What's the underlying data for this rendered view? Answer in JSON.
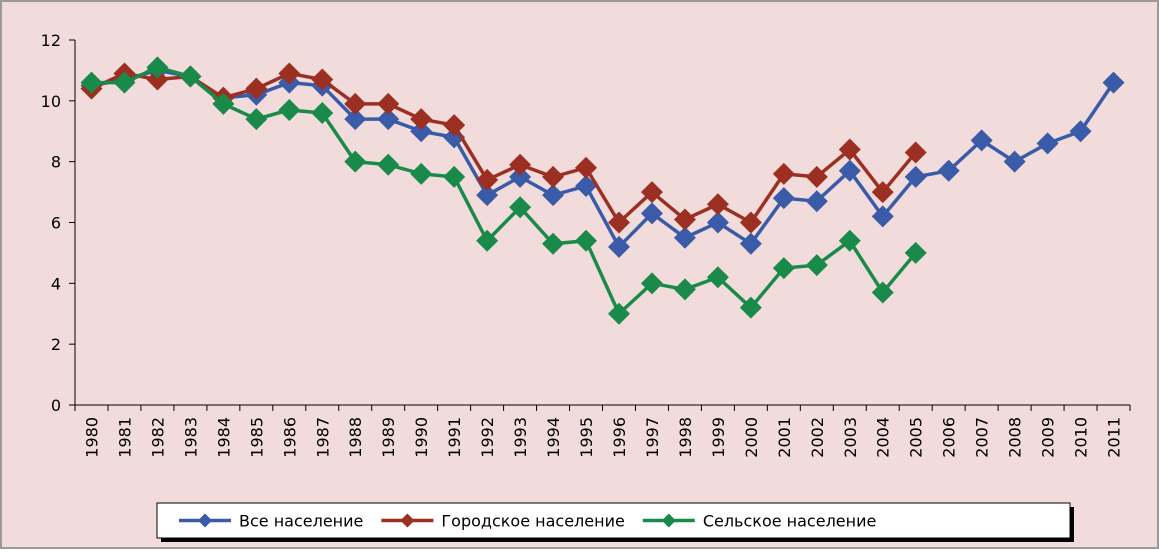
{
  "chart_data": {
    "type": "line",
    "categories": [
      "1980",
      "1981",
      "1982",
      "1983",
      "1984",
      "1985",
      "1986",
      "1987",
      "1988",
      "1989",
      "1990",
      "1991",
      "1992",
      "1993",
      "1994",
      "1995",
      "1996",
      "1997",
      "1998",
      "1999",
      "2000",
      "2001",
      "2002",
      "2003",
      "2004",
      "2005",
      "2006",
      "2007",
      "2008",
      "2009",
      "2010",
      "2011"
    ],
    "series": [
      {
        "name": "Все население",
        "color": "#3a5ba8",
        "values": [
          10.5,
          10.7,
          11.0,
          10.8,
          10.1,
          10.2,
          10.6,
          10.5,
          9.4,
          9.4,
          9.0,
          8.8,
          6.9,
          7.5,
          6.9,
          7.2,
          5.2,
          6.3,
          5.5,
          6.0,
          5.3,
          6.8,
          6.7,
          7.7,
          6.2,
          7.5,
          7.7,
          8.7,
          8.0,
          8.6,
          9.0,
          10.6
        ]
      },
      {
        "name": "Городское население",
        "color": "#9b3022",
        "values": [
          10.4,
          10.9,
          10.7,
          10.8,
          10.1,
          10.4,
          10.9,
          10.7,
          9.9,
          9.9,
          9.4,
          9.2,
          7.4,
          7.9,
          7.5,
          7.8,
          6.0,
          7.0,
          6.1,
          6.6,
          6.0,
          7.6,
          7.5,
          8.4,
          7.0,
          8.3,
          null,
          null,
          null,
          null,
          null,
          null
        ]
      },
      {
        "name": "Сельское население",
        "color": "#1a8a4a",
        "values": [
          10.6,
          10.6,
          11.1,
          10.8,
          9.9,
          9.4,
          9.7,
          9.6,
          8.0,
          7.9,
          7.6,
          7.5,
          5.4,
          6.5,
          5.3,
          5.4,
          3.0,
          4.0,
          3.8,
          4.2,
          3.2,
          4.5,
          4.6,
          5.4,
          3.7,
          5.0,
          null,
          null,
          null,
          null,
          null,
          null
        ]
      }
    ],
    "ylim": [
      0,
      12
    ],
    "yticks": [
      0,
      2,
      4,
      6,
      8,
      10,
      12
    ],
    "grid": false,
    "legend": "bottom"
  }
}
